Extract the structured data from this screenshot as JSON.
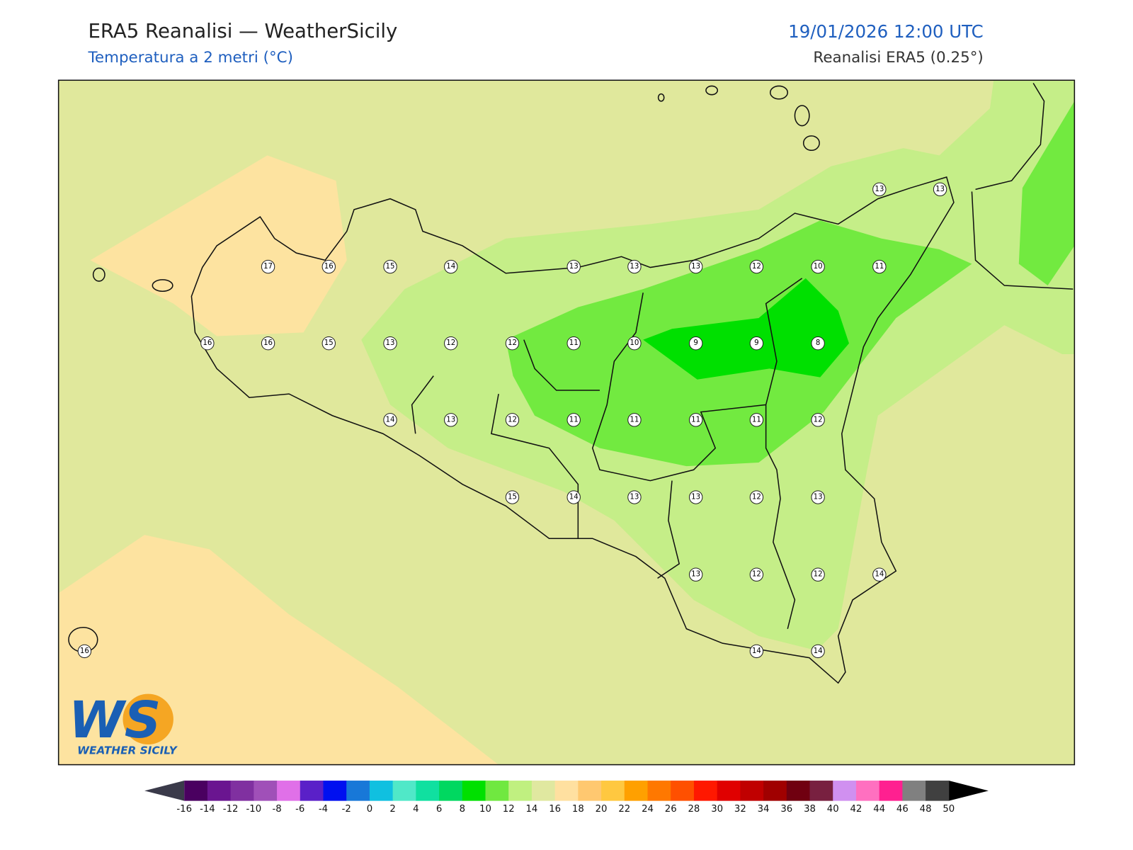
{
  "header": {
    "title": "ERA5 Reanalisi — WeatherSicily",
    "subtitle": "Temperatura a 2 metri (°C)",
    "datetime": "19/01/2026 12:00 UTC",
    "source": "Reanalisi ERA5 (0.25°)"
  },
  "logo": {
    "initials": "WS",
    "name": "WEATHER SICILY"
  },
  "stations": [
    17,
    16,
    15,
    14,
    13,
    13,
    13,
    12,
    10,
    11,
    13,
    13,
    16,
    16,
    15,
    13,
    12,
    12,
    11,
    10,
    9,
    9,
    8,
    14,
    13,
    12,
    11,
    11,
    11,
    11,
    12,
    15,
    14,
    13,
    13,
    12,
    13,
    13,
    12,
    12,
    14,
    16,
    14,
    14
  ],
  "colorbar": {
    "ticks": [
      -16,
      -14,
      -12,
      -10,
      -8,
      -6,
      -4,
      -2,
      0,
      2,
      4,
      6,
      8,
      10,
      12,
      14,
      16,
      18,
      20,
      22,
      24,
      26,
      28,
      30,
      32,
      34,
      36,
      38,
      40,
      42,
      44,
      46,
      48,
      50
    ],
    "colors": [
      "#4a0060",
      "#6a1590",
      "#8030a0",
      "#a050b8",
      "#e070e8",
      "#5a20c8",
      "#0010f0",
      "#1878d8",
      "#10c0e0",
      "#50e8c8",
      "#10e0a0",
      "#00d860",
      "#00e000",
      "#70e840",
      "#c0f080",
      "#e0e8a0",
      "#ffe0a0",
      "#ffc870",
      "#ffc840",
      "#ffa000",
      "#ff7800",
      "#ff5000",
      "#ff1800",
      "#e00000",
      "#c00000",
      "#a00000",
      "#700010",
      "#782040",
      "#d090f0",
      "#ff70c0",
      "#ff2090",
      "#808080",
      "#404040"
    ]
  }
}
